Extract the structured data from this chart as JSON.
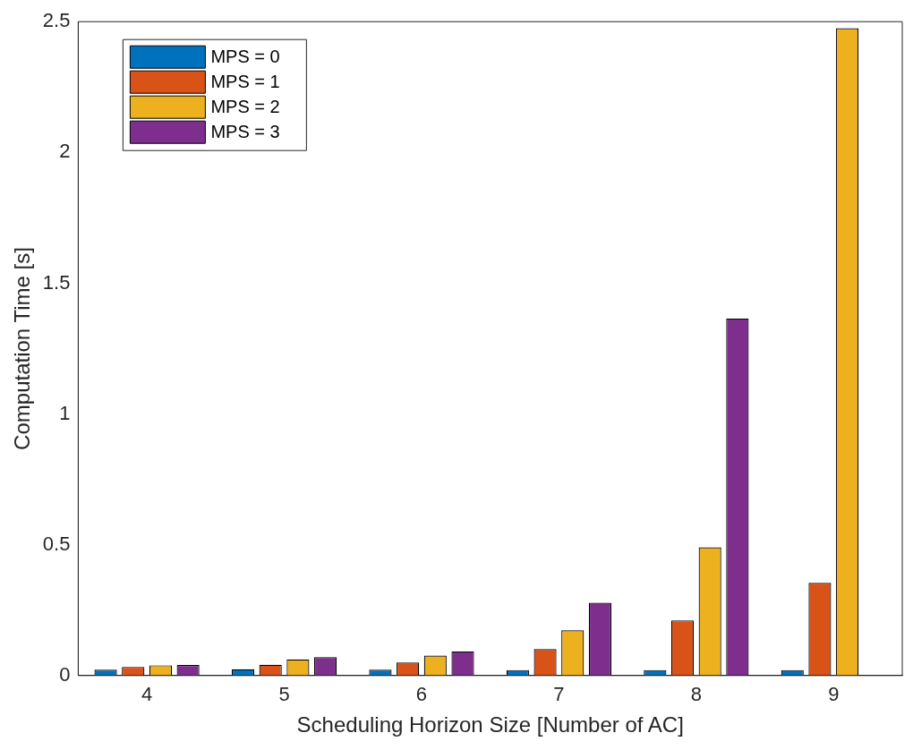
{
  "chart_data": {
    "type": "bar",
    "xlabel": "Scheduling Horizon Size [Number of AC]",
    "ylabel": "Computation Time [s]",
    "categories": [
      "4",
      "5",
      "6",
      "7",
      "8",
      "9"
    ],
    "series": [
      {
        "name": "MPS = 0",
        "color": "#0072bd",
        "values": [
          0.022,
          0.024,
          0.022,
          0.021,
          0.021,
          0.021
        ]
      },
      {
        "name": "MPS = 1",
        "color": "#d95319",
        "values": [
          0.033,
          0.041,
          0.05,
          0.101,
          0.211,
          0.354
        ]
      },
      {
        "name": "MPS = 2",
        "color": "#edb120",
        "values": [
          0.039,
          0.062,
          0.076,
          0.173,
          0.49,
          2.475
        ]
      },
      {
        "name": "MPS = 3",
        "color": "#7e2f8e",
        "values": [
          0.04,
          0.07,
          0.092,
          0.278,
          1.365,
          0
        ]
      }
    ],
    "ylim": [
      0,
      2.5
    ],
    "yticks": [
      0,
      0.5,
      1,
      1.5,
      2,
      2.5
    ],
    "grid": false,
    "legend": "top left"
  }
}
